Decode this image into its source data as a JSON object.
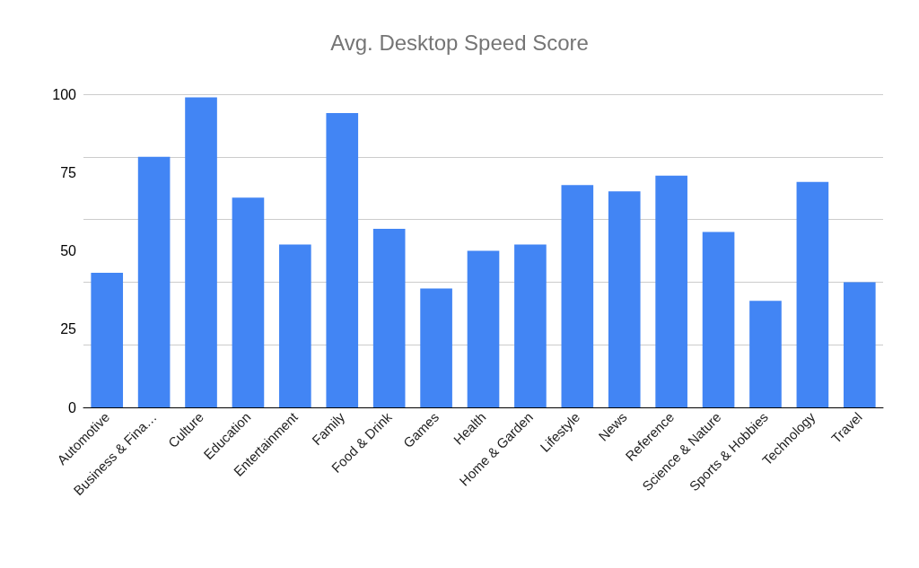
{
  "chart_data": {
    "type": "bar",
    "title": "Avg. Desktop Speed Score",
    "categories": [
      "Automotive",
      "Business & Fina…",
      "Culture",
      "Education",
      "Entertainment",
      "Family",
      "Food & Drink",
      "Games",
      "Health",
      "Home & Garden",
      "Lifestyle",
      "News",
      "Reference",
      "Science & Nature",
      "Sports & Hobbies",
      "Technology",
      "Travel"
    ],
    "values": [
      43,
      80,
      99,
      67,
      52,
      94,
      57,
      38,
      50,
      52,
      71,
      69,
      74,
      56,
      34,
      72,
      40
    ],
    "color": "#4285f4",
    "ylim": [
      0,
      100
    ],
    "yticks": [
      0,
      25,
      50,
      75,
      100
    ],
    "grid": "y"
  }
}
